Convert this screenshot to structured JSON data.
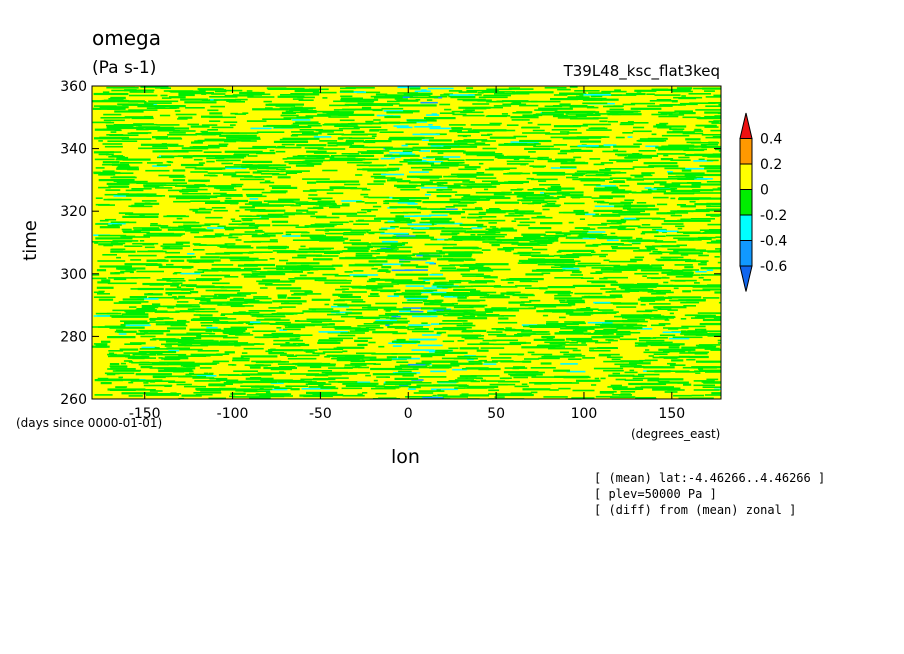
{
  "chart_data": {
    "type": "heatmap",
    "title": "omega",
    "units": "(Pa s-1)",
    "experiment": "T39L48_ksc_flat3keq",
    "xlabel": "lon",
    "ylabel": "time",
    "x_unit_label": "(degrees_east)",
    "y_unit_label": "(days since 0000-01-01)",
    "xlim": [
      -180,
      178
    ],
    "ylim": [
      260,
      360
    ],
    "x_ticks": [
      {
        "value": -150,
        "label": "-150"
      },
      {
        "value": -100,
        "label": "-100"
      },
      {
        "value": -50,
        "label": "-50"
      },
      {
        "value": 0,
        "label": "0"
      },
      {
        "value": 50,
        "label": "50"
      },
      {
        "value": 100,
        "label": "100"
      },
      {
        "value": 150,
        "label": "150"
      }
    ],
    "y_ticks": [
      {
        "value": 260,
        "label": "260"
      },
      {
        "value": 280,
        "label": "280"
      },
      {
        "value": 300,
        "label": "300"
      },
      {
        "value": 320,
        "label": "320"
      },
      {
        "value": 340,
        "label": "340"
      },
      {
        "value": 360,
        "label": "360"
      }
    ],
    "colorbar": {
      "levels": [
        {
          "value": 0.4,
          "label": "0.4"
        },
        {
          "value": 0.2,
          "label": "0.2"
        },
        {
          "value": 0,
          "label": "0"
        },
        {
          "value": -0.2,
          "label": "-0.2"
        },
        {
          "value": -0.4,
          "label": "-0.4"
        },
        {
          "value": -0.6,
          "label": "-0.6"
        }
      ],
      "colors": [
        "#ee1111",
        "#ff9900",
        "#ffff00",
        "#00ee00",
        "#00ffff",
        "#1199ff",
        "#1166ee"
      ]
    },
    "field_description_colors": {
      "dominant": "#ffff00",
      "secondary": "#00ee00",
      "minor": "#00ffff",
      "rare": "#1199ff"
    },
    "annotations": [
      "[ (mean) lat:-4.46266..4.46266 ]",
      "[ plev=50000 Pa ]",
      "[ (diff) from (mean) zonal ]"
    ]
  }
}
